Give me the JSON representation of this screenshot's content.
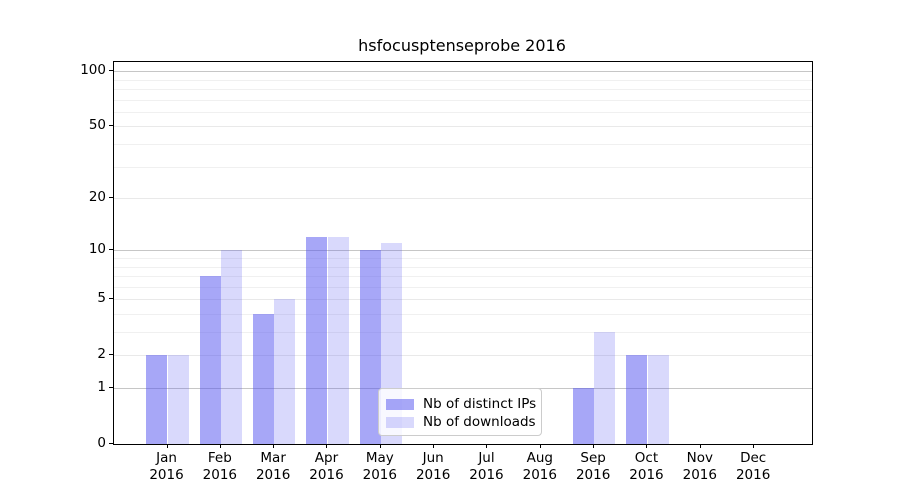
{
  "title": "hsfocusptenseprobe 2016",
  "chart_data": {
    "type": "bar",
    "title": "hsfocusptenseprobe 2016",
    "categories": [
      "Jan 2016",
      "Feb 2016",
      "Mar 2016",
      "Apr 2016",
      "May 2016",
      "Jun 2016",
      "Jul 2016",
      "Aug 2016",
      "Sep 2016",
      "Oct 2016",
      "Nov 2016",
      "Dec 2016"
    ],
    "series": [
      {
        "name": "Nb of distinct IPs",
        "color": "rgba(80,80,240,0.5)",
        "values": [
          2,
          7,
          4,
          12,
          10,
          0,
          0,
          0,
          1,
          2,
          0,
          0
        ]
      },
      {
        "name": "Nb of downloads",
        "color": "rgba(80,80,240,0.22)",
        "values": [
          2,
          10,
          5,
          12,
          11,
          0,
          0,
          0,
          3,
          2,
          0,
          0
        ]
      }
    ],
    "xlabel": "",
    "ylabel": "",
    "yscale": "log1p",
    "ylim": [
      0,
      112
    ],
    "y_ticks": [
      0,
      1,
      2,
      5,
      10,
      20,
      50,
      100
    ],
    "y_major_gridlines": [
      1,
      10,
      100
    ],
    "y_labeled_minor_gridlines": [
      2,
      5,
      20,
      50
    ],
    "y_log_minor_gridlines": [
      3,
      4,
      6,
      7,
      8,
      9,
      30,
      40,
      60,
      70,
      80,
      90
    ],
    "grid": true,
    "legend_position": "lower center"
  },
  "legend": {
    "items": [
      {
        "label": "Nb of distinct IPs"
      },
      {
        "label": "Nb of downloads"
      }
    ]
  },
  "colors": {
    "bar_dark": "rgba(80,80,240,0.5)",
    "bar_light": "rgba(80,80,240,0.22)",
    "grid_major": "#c6c6c6",
    "grid_minor": "#e9e9e9",
    "axis": "#000000",
    "text": "#000000"
  }
}
